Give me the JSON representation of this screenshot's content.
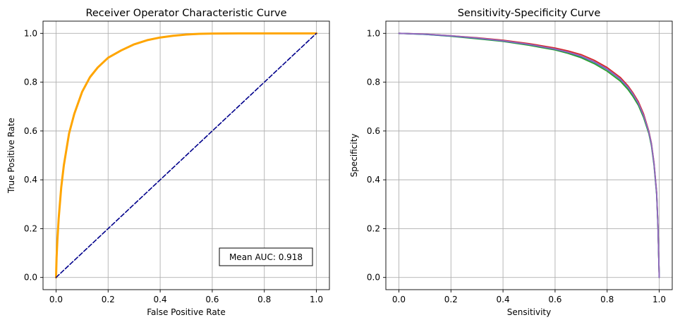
{
  "chart_data": [
    {
      "type": "line",
      "title": "Receiver Operator Characteristic Curve",
      "xlabel": "False Positive Rate",
      "ylabel": "True Positive Rate",
      "xlim": [
        -0.05,
        1.05
      ],
      "ylim": [
        -0.05,
        1.05
      ],
      "xticks": [
        "0.0",
        "0.2",
        "0.4",
        "0.6",
        "0.8",
        "1.0"
      ],
      "yticks": [
        "0.0",
        "0.2",
        "0.4",
        "0.6",
        "0.8",
        "1.0"
      ],
      "grid": true,
      "annotation": "Mean AUC: 0.918",
      "series": [
        {
          "color": "#ffa500",
          "x": [
            0.0,
            0.002,
            0.005,
            0.01,
            0.02,
            0.03,
            0.05,
            0.07,
            0.1,
            0.13,
            0.16,
            0.2,
            0.25,
            0.3,
            0.35,
            0.4,
            0.45,
            0.5,
            0.55,
            0.6,
            0.7,
            0.8,
            0.9,
            1.0
          ],
          "y": [
            0.0,
            0.08,
            0.15,
            0.24,
            0.37,
            0.46,
            0.59,
            0.67,
            0.76,
            0.82,
            0.86,
            0.9,
            0.93,
            0.955,
            0.972,
            0.983,
            0.99,
            0.995,
            0.998,
            0.999,
            1.0,
            1.0,
            1.0,
            1.0
          ]
        },
        {
          "color": "#00008b",
          "dashed": true,
          "x": [
            0.0,
            1.0
          ],
          "y": [
            0.0,
            1.0
          ]
        }
      ]
    },
    {
      "type": "line",
      "title": "Sensitivity-Specificity Curve",
      "xlabel": "Sensitivity",
      "ylabel": "Specificity",
      "xlim": [
        -0.05,
        1.05
      ],
      "ylim": [
        -0.05,
        1.05
      ],
      "xticks": [
        "0.0",
        "0.2",
        "0.4",
        "0.6",
        "0.8",
        "1.0"
      ],
      "yticks": [
        "0.0",
        "0.2",
        "0.4",
        "0.6",
        "0.8",
        "1.0"
      ],
      "grid": true,
      "series": [
        {
          "color": "#d62728",
          "x": [
            0.0,
            0.1,
            0.2,
            0.3,
            0.4,
            0.5,
            0.6,
            0.65,
            0.7,
            0.75,
            0.8,
            0.85,
            0.88,
            0.9,
            0.92,
            0.94,
            0.96,
            0.97,
            0.98,
            0.99,
            0.995,
            1.0
          ],
          "y": [
            1.0,
            0.997,
            0.99,
            0.982,
            0.972,
            0.958,
            0.94,
            0.928,
            0.913,
            0.89,
            0.86,
            0.82,
            0.785,
            0.755,
            0.72,
            0.67,
            0.6,
            0.55,
            0.47,
            0.35,
            0.22,
            0.0
          ]
        },
        {
          "color": "#2ca02c",
          "x": [
            0.0,
            0.1,
            0.2,
            0.3,
            0.4,
            0.5,
            0.6,
            0.65,
            0.7,
            0.75,
            0.8,
            0.85,
            0.88,
            0.9,
            0.92,
            0.94,
            0.96,
            0.97,
            0.98,
            0.99,
            0.995,
            1.0
          ],
          "y": [
            1.0,
            0.996,
            0.988,
            0.978,
            0.967,
            0.951,
            0.932,
            0.918,
            0.9,
            0.876,
            0.845,
            0.805,
            0.77,
            0.74,
            0.705,
            0.655,
            0.59,
            0.54,
            0.46,
            0.34,
            0.21,
            0.0
          ]
        },
        {
          "color": "#1f77b4",
          "x": [
            0.0,
            0.1,
            0.2,
            0.3,
            0.4,
            0.5,
            0.6,
            0.65,
            0.7,
            0.75,
            0.8,
            0.85,
            0.88,
            0.9,
            0.92,
            0.94,
            0.96,
            0.97,
            0.98,
            0.99,
            0.995,
            1.0
          ],
          "y": [
            1.0,
            0.996,
            0.989,
            0.98,
            0.969,
            0.954,
            0.935,
            0.922,
            0.905,
            0.882,
            0.852,
            0.812,
            0.778,
            0.748,
            0.712,
            0.662,
            0.595,
            0.545,
            0.465,
            0.345,
            0.215,
            0.0
          ]
        },
        {
          "color": "#9467bd",
          "x": [
            0.0,
            0.1,
            0.2,
            0.3,
            0.4,
            0.5,
            0.6,
            0.65,
            0.7,
            0.75,
            0.8,
            0.85,
            0.88,
            0.9,
            0.92,
            0.94,
            0.96,
            0.97,
            0.98,
            0.99,
            0.995,
            1.0
          ],
          "y": [
            1.0,
            0.997,
            0.99,
            0.981,
            0.97,
            0.955,
            0.936,
            0.923,
            0.907,
            0.884,
            0.854,
            0.814,
            0.78,
            0.75,
            0.714,
            0.664,
            0.597,
            0.547,
            0.467,
            0.347,
            0.217,
            0.0
          ]
        }
      ]
    }
  ]
}
